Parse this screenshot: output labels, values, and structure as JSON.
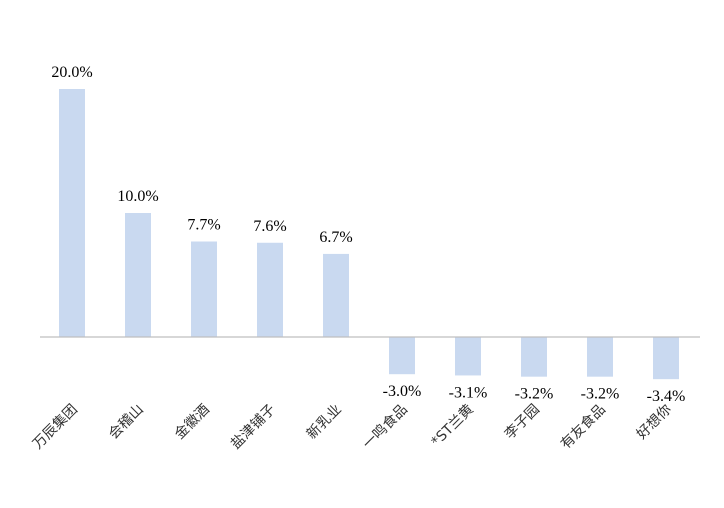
{
  "chart_data": {
    "type": "bar",
    "categories": [
      "万辰集团",
      "会稽山",
      "金徽酒",
      "盐津铺子",
      "新乳业",
      "一鸣食品",
      "*ST兰黄",
      "李子园",
      "有友食品",
      "好想你"
    ],
    "values": [
      20.0,
      10.0,
      7.7,
      7.6,
      6.7,
      -3.0,
      -3.1,
      -3.2,
      -3.2,
      -3.4
    ],
    "labels": [
      "20.0%",
      "10.0%",
      "7.7%",
      "7.6%",
      "6.7%",
      "-3.0%",
      "-3.1%",
      "-3.2%",
      "-3.2%",
      "-3.4%"
    ],
    "title": "",
    "xlabel": "",
    "ylabel": "",
    "ylim": [
      -5,
      22
    ],
    "grid": false,
    "legend": "none",
    "bar_color": "#c9d9f0",
    "axis_color": "#bfbfbf"
  }
}
